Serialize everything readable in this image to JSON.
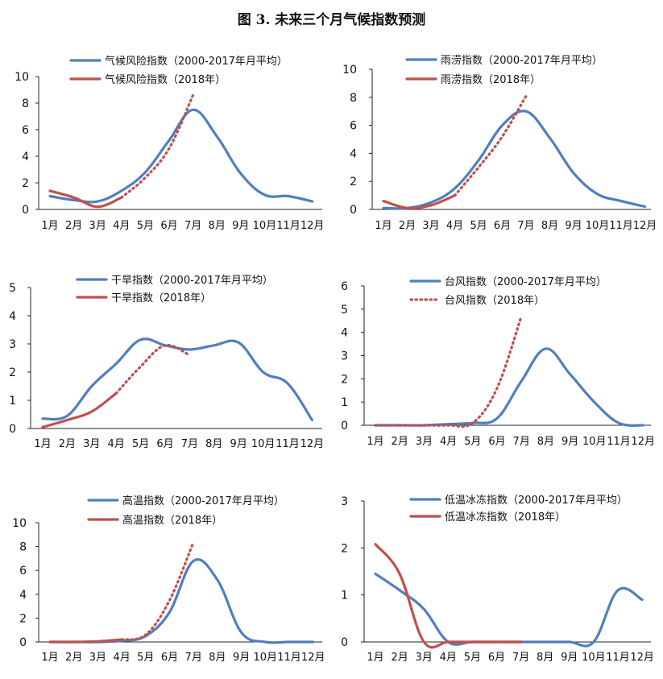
{
  "figure": {
    "title": "图 3. 未来三个月气候指数预测"
  },
  "colors": {
    "blue": "#4f7fbf",
    "red": "#c0504d"
  },
  "chart_data": [
    {
      "type": "line",
      "categories": [
        "1月",
        "2月",
        "3月",
        "4月",
        "5月",
        "6月",
        "7月",
        "8月",
        "9月",
        "10月",
        "11月",
        "12月"
      ],
      "ylim": [
        0,
        10
      ],
      "yticks": [
        0,
        2,
        4,
        6,
        8,
        10
      ],
      "series": [
        {
          "name": "气候风险指数（2000-2017年月平均）",
          "style": "solid",
          "color": "#4f7fbf",
          "values": [
            1.0,
            0.7,
            0.6,
            1.4,
            2.8,
            5.2,
            7.5,
            5.5,
            2.7,
            1.1,
            1.0,
            0.6
          ]
        },
        {
          "name": "气候风险指数（2018年）",
          "style": "solid",
          "color": "#c0504d",
          "values": [
            1.4,
            0.9,
            0.2,
            0.9,
            null,
            null,
            null,
            null,
            null,
            null,
            null,
            null
          ]
        },
        {
          "name": "",
          "style": "dotted",
          "color": "#c0504d",
          "values": [
            null,
            null,
            null,
            0.9,
            2.4,
            4.6,
            8.6,
            null,
            null,
            null,
            null,
            null
          ]
        }
      ]
    },
    {
      "type": "line",
      "categories": [
        "1月",
        "2月",
        "3月",
        "4月",
        "5月",
        "6月",
        "7月",
        "8月",
        "9月",
        "10月",
        "11月",
        "12月"
      ],
      "ylim": [
        0,
        10
      ],
      "yticks": [
        0,
        2,
        4,
        6,
        8,
        10
      ],
      "series": [
        {
          "name": "雨涝指数（2000-2017年月平均）",
          "style": "solid",
          "color": "#4f7fbf",
          "values": [
            0.1,
            0.1,
            0.5,
            1.5,
            3.5,
            6.0,
            7.0,
            5.1,
            2.6,
            1.1,
            0.6,
            0.2
          ]
        },
        {
          "name": "雨涝指数（2018年）",
          "style": "solid",
          "color": "#c0504d",
          "values": [
            0.6,
            0.1,
            0.3,
            1.0,
            null,
            null,
            null,
            null,
            null,
            null,
            null,
            null
          ]
        },
        {
          "name": "",
          "style": "dotted",
          "color": "#c0504d",
          "values": [
            null,
            null,
            null,
            1.0,
            3.0,
            5.2,
            8.1,
            null,
            null,
            null,
            null,
            null
          ]
        }
      ]
    },
    {
      "type": "line",
      "categories": [
        "1月",
        "2月",
        "3月",
        "4月",
        "5月",
        "6月",
        "7月",
        "8月",
        "9月",
        "10月",
        "11月",
        "12月"
      ],
      "ylim": [
        0,
        5
      ],
      "yticks": [
        0,
        1,
        2,
        3,
        4,
        5
      ],
      "series": [
        {
          "name": "干旱指数（2000-2017年月平均）",
          "style": "solid",
          "color": "#4f7fbf",
          "values": [
            0.35,
            0.45,
            1.5,
            2.3,
            3.15,
            2.95,
            2.8,
            2.95,
            3.05,
            2.0,
            1.6,
            0.3
          ]
        },
        {
          "name": "干旱指数（2018年）",
          "style": "solid",
          "color": "#c0504d",
          "values": [
            0.05,
            0.3,
            0.6,
            1.25,
            null,
            null,
            null,
            null,
            null,
            null,
            null,
            null
          ]
        },
        {
          "name": "",
          "style": "dotted",
          "color": "#c0504d",
          "values": [
            null,
            null,
            null,
            1.25,
            2.2,
            2.95,
            2.6,
            null,
            null,
            null,
            null,
            null
          ]
        }
      ]
    },
    {
      "type": "line",
      "categories": [
        "1月",
        "2月",
        "3月",
        "4月",
        "5月",
        "6月",
        "7月",
        "8月",
        "9月",
        "10月",
        "11月",
        "12月"
      ],
      "ylim": [
        0,
        6
      ],
      "yticks": [
        0,
        1,
        2,
        3,
        4,
        5,
        6
      ],
      "series": [
        {
          "name": "台风指数（2000-2017年月平均）",
          "style": "solid",
          "color": "#4f7fbf",
          "values": [
            0.0,
            0.0,
            0.0,
            0.05,
            0.1,
            0.3,
            1.9,
            3.3,
            2.2,
            1.0,
            0.1,
            0.0
          ]
        },
        {
          "name": "台风指数（2018年）",
          "style": "dotted",
          "color": "#c0504d",
          "values": [
            0.0,
            0.0,
            0.0,
            0.0,
            0.1,
            1.6,
            4.7,
            null,
            null,
            null,
            null,
            null
          ]
        }
      ]
    },
    {
      "type": "line",
      "categories": [
        "1月",
        "2月",
        "3月",
        "4月",
        "5月",
        "6月",
        "7月",
        "8月",
        "9月",
        "10月",
        "11月",
        "12月"
      ],
      "ylim": [
        0,
        10
      ],
      "yticks": [
        0,
        2,
        4,
        6,
        8,
        10
      ],
      "series": [
        {
          "name": "高温指数（2000-2017年月平均）",
          "style": "solid",
          "color": "#4f7fbf",
          "values": [
            0.0,
            0.0,
            0.0,
            0.1,
            0.5,
            2.5,
            6.8,
            5.2,
            0.8,
            0.0,
            0.0,
            0.0
          ]
        },
        {
          "name": "高温指数（2018年）",
          "style": "solid",
          "color": "#c0504d",
          "values": [
            0.0,
            0.0,
            0.05,
            0.2,
            null,
            null,
            null,
            null,
            null,
            null,
            null,
            null
          ]
        },
        {
          "name": "",
          "style": "dotted",
          "color": "#c0504d",
          "values": [
            null,
            null,
            null,
            0.2,
            0.6,
            3.5,
            8.4,
            null,
            null,
            null,
            null,
            null
          ]
        }
      ]
    },
    {
      "type": "line",
      "categories": [
        "1月",
        "2月",
        "3月",
        "4月",
        "5月",
        "6月",
        "7月",
        "8月",
        "9月",
        "10月",
        "11月",
        "12月"
      ],
      "ylim": [
        0,
        3
      ],
      "yticks": [
        0,
        1,
        2,
        3
      ],
      "series": [
        {
          "name": "低温冰冻指数（2000-2017年月平均）",
          "style": "solid",
          "color": "#4f7fbf",
          "values": [
            1.45,
            1.1,
            0.7,
            0.0,
            0.0,
            0.0,
            0.0,
            0.0,
            0.0,
            0.0,
            1.1,
            0.9
          ]
        },
        {
          "name": "低温冰冻指数（2018年）",
          "style": "solid",
          "color": "#c0504d",
          "values": [
            2.08,
            1.45,
            0.0,
            0.0,
            0.0,
            0.0,
            0.0,
            null,
            null,
            null,
            null,
            null
          ]
        },
        {
          "name": "",
          "style": "dotted",
          "color": "#c0504d",
          "values": [
            null,
            null,
            null,
            0.0,
            0.0,
            0.0,
            0.0,
            null,
            null,
            null,
            null,
            null
          ]
        }
      ]
    }
  ]
}
